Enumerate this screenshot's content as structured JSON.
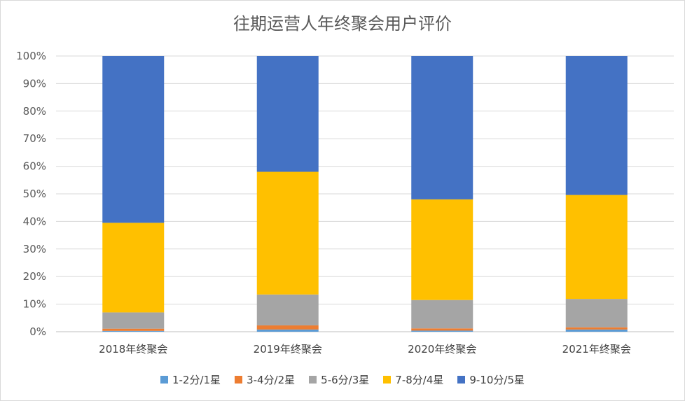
{
  "chart_data": {
    "type": "bar",
    "stacked": true,
    "percent": true,
    "title": "往期运营人年终聚会用户评价",
    "xlabel": "",
    "ylabel": "",
    "ylim": [
      0,
      100
    ],
    "yticks": [
      "0%",
      "10%",
      "20%",
      "30%",
      "40%",
      "50%",
      "60%",
      "70%",
      "80%",
      "90%",
      "100%"
    ],
    "categories": [
      "2018年终聚会",
      "2019年终聚会",
      "2020年终聚会",
      "2021年终聚会"
    ],
    "series": [
      {
        "name": "1-2分/1星",
        "color": "#5b9bd5",
        "values": [
          0.3,
          0.8,
          0.4,
          0.8
        ]
      },
      {
        "name": "3-4分/2星",
        "color": "#ed7d31",
        "values": [
          0.8,
          1.5,
          0.8,
          0.8
        ]
      },
      {
        "name": "5-6分/3星",
        "color": "#a5a5a5",
        "values": [
          5.9,
          11.2,
          10.3,
          10.3
        ]
      },
      {
        "name": "7-8分/4星",
        "color": "#ffc000",
        "values": [
          32.5,
          44.5,
          36.5,
          37.7
        ]
      },
      {
        "name": "9-10分/5星",
        "color": "#4472c4",
        "values": [
          60.5,
          42.0,
          52.0,
          50.4
        ]
      }
    ],
    "grid": true,
    "legend": "bottom"
  }
}
